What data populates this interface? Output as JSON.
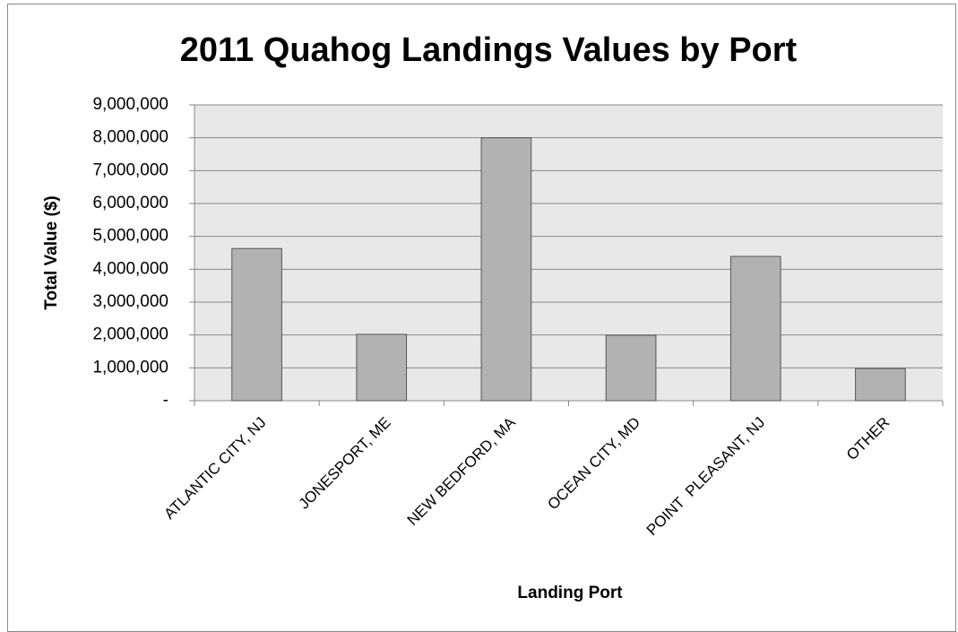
{
  "chart_data": {
    "type": "bar",
    "title": "2011 Quahog Landings Values by Port",
    "x_label": "Landing Port",
    "y_label": "Total Value ($)",
    "categories": [
      "ATLANTIC CITY, NJ",
      "JONESPORT, ME",
      "NEW BEDFORD, MA",
      "OCEAN CITY, MD",
      "POINT  PLEASANT, NJ",
      "OTHER"
    ],
    "values": [
      4630000,
      2020000,
      8000000,
      1990000,
      4390000,
      980000
    ],
    "color": "#b2b2b2",
    "ylim": [
      0,
      9000000
    ],
    "yticks": [
      {
        "value": 0,
        "label": "-"
      },
      {
        "value": 1000000,
        "label": "1,000,000"
      },
      {
        "value": 2000000,
        "label": "2,000,000"
      },
      {
        "value": 3000000,
        "label": "3,000,000"
      },
      {
        "value": 4000000,
        "label": "4,000,000"
      },
      {
        "value": 5000000,
        "label": "5,000,000"
      },
      {
        "value": 6000000,
        "label": "6,000,000"
      },
      {
        "value": 7000000,
        "label": "7,000,000"
      },
      {
        "value": 8000000,
        "label": "8,000,000"
      },
      {
        "value": 9000000,
        "label": "9,000,000"
      }
    ],
    "grid": true
  }
}
